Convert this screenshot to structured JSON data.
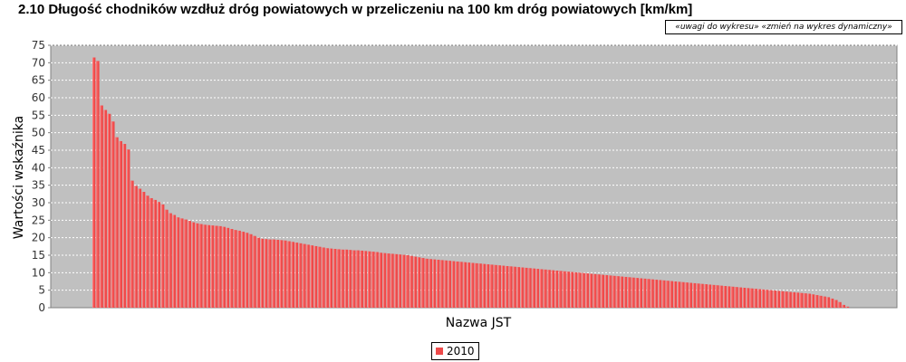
{
  "title": "2.10 Długość chodników wzdłuż dróg powiatowych w przeliczeniu na 100 km dróg powiatowych [km/km]",
  "links": {
    "notes": "«uwagi do wykresu»",
    "dynamic": "«zmień na wykres dynamiczny»"
  },
  "colors": {
    "plot_background": "#c0c0c0",
    "bar": "#ee4a4a",
    "bar_highlight": "#ff7a7a",
    "grid": "#ffffff"
  },
  "chart_data": {
    "type": "bar",
    "title": "2.10 Długość chodników wzdłuż dróg powiatowych w przeliczeniu na 100 km dróg powiatowych [km/km]",
    "xlabel": "Nazwa JST",
    "ylabel": "Wartości wskaźnika",
    "ylim": [
      0,
      75
    ],
    "yticks": [
      0,
      5,
      10,
      15,
      20,
      25,
      30,
      35,
      40,
      45,
      50,
      55,
      60,
      65,
      70,
      75
    ],
    "grid": true,
    "legend_position": "bottom-center",
    "series": [
      {
        "name": "2010",
        "values": [
          71.5,
          70.5,
          57.8,
          56.5,
          55.4,
          53.2,
          48.7,
          47.6,
          46.8,
          45.2,
          36.3,
          34.8,
          34.0,
          33.1,
          32.0,
          31.3,
          30.8,
          30.2,
          29.5,
          28.0,
          27.0,
          26.5,
          25.8,
          25.5,
          25.2,
          24.8,
          24.4,
          24.1,
          23.9,
          23.7,
          23.6,
          23.5,
          23.4,
          23.3,
          23.1,
          22.8,
          22.5,
          22.2,
          22.0,
          21.7,
          21.4,
          21.0,
          20.5,
          20.0,
          19.7,
          19.6,
          19.5,
          19.5,
          19.4,
          19.3,
          19.2,
          19.0,
          18.8,
          18.6,
          18.4,
          18.2,
          18.0,
          17.8,
          17.6,
          17.4,
          17.2,
          17.0,
          16.9,
          16.8,
          16.7,
          16.6,
          16.6,
          16.5,
          16.4,
          16.4,
          16.3,
          16.2,
          16.1,
          16.0,
          15.9,
          15.7,
          15.6,
          15.5,
          15.4,
          15.3,
          15.2,
          15.1,
          15.0,
          14.8,
          14.6,
          14.4,
          14.2,
          14.0,
          13.9,
          13.8,
          13.7,
          13.6,
          13.5,
          13.4,
          13.3,
          13.2,
          13.1,
          13.0,
          12.9,
          12.8,
          12.7,
          12.6,
          12.5,
          12.4,
          12.3,
          12.2,
          12.1,
          12.0,
          11.9,
          11.8,
          11.7,
          11.6,
          11.5,
          11.4,
          11.3,
          11.2,
          11.1,
          11.0,
          10.9,
          10.8,
          10.7,
          10.6,
          10.5,
          10.4,
          10.3,
          10.2,
          10.1,
          10.0,
          9.9,
          9.8,
          9.7,
          9.6,
          9.5,
          9.4,
          9.3,
          9.2,
          9.1,
          9.0,
          8.9,
          8.8,
          8.7,
          8.6,
          8.5,
          8.4,
          8.3,
          8.2,
          8.1,
          8.0,
          7.9,
          7.8,
          7.7,
          7.6,
          7.5,
          7.4,
          7.3,
          7.2,
          7.1,
          7.0,
          6.9,
          6.8,
          6.7,
          6.6,
          6.5,
          6.4,
          6.3,
          6.2,
          6.1,
          6.0,
          5.9,
          5.8,
          5.7,
          5.6,
          5.5,
          5.4,
          5.3,
          5.2,
          5.1,
          5.0,
          4.9,
          4.8,
          4.7,
          4.6,
          4.5,
          4.4,
          4.3,
          4.2,
          4.1,
          4.0,
          3.8,
          3.6,
          3.4,
          3.2,
          3.0,
          2.6,
          2.2,
          1.6,
          0.8,
          0.3
        ]
      }
    ]
  }
}
